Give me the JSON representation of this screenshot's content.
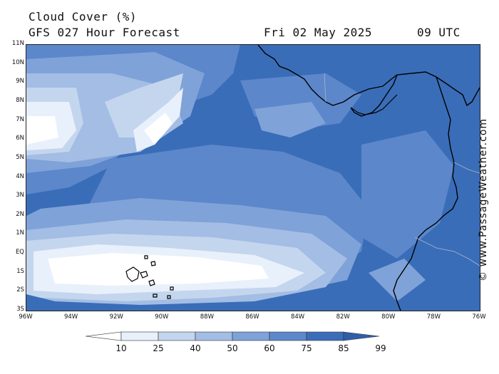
{
  "header": {
    "title": "Cloud Cover (%)",
    "subtitle": "GFS 027 Hour Forecast",
    "date": "Fri 02 May 2025",
    "time": "09 UTC"
  },
  "map": {
    "latitude_labels": [
      "11N",
      "10N",
      "9N",
      "8N",
      "7N",
      "6N",
      "5N",
      "4N",
      "3N",
      "2N",
      "1N",
      "EQ",
      "1S",
      "2S",
      "3S"
    ],
    "longitude_labels": [
      "96W",
      "94W",
      "92W",
      "90W",
      "88W",
      "86W",
      "84W",
      "82W",
      "80W",
      "78W",
      "76W"
    ],
    "lat_range": [
      -3,
      11
    ],
    "lon_range": [
      -96,
      -76
    ]
  },
  "legend": {
    "values": [
      "10",
      "25",
      "40",
      "50",
      "60",
      "75",
      "85",
      "99"
    ],
    "colors": [
      "#ffffff",
      "#e8f0fb",
      "#c4d6ee",
      "#a3bde4",
      "#7fa2d8",
      "#5c87cb",
      "#3a6db8",
      "#2f5ea6"
    ]
  },
  "credit": "© www.PassageWeather.com"
}
